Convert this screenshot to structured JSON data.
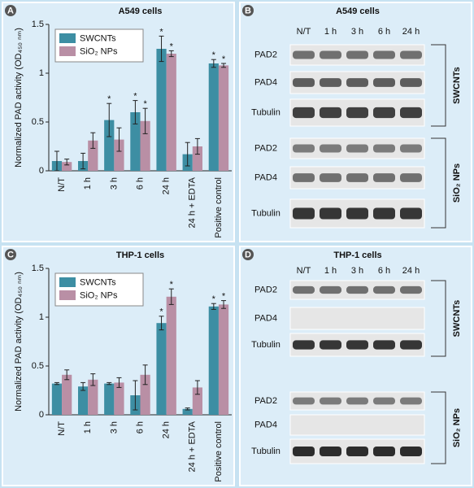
{
  "chart_data": [
    {
      "type": "bar",
      "label": "A",
      "title": "A549 cells",
      "y_label": "Normalized PAD activity (OD₄₅₀ ₙₘ)",
      "categories": [
        "N/T",
        "1 h",
        "3 h",
        "6 h",
        "24 h",
        "24 h + EDTA",
        "Positive control"
      ],
      "series": [
        {
          "name": "SWCNTs",
          "color": "#3d8ea3",
          "values": [
            0.1,
            0.1,
            0.52,
            0.6,
            1.25,
            0.17,
            1.1
          ],
          "errors": [
            0.1,
            0.08,
            0.17,
            0.12,
            0.13,
            0.12,
            0.04
          ],
          "markers": [
            null,
            null,
            "*",
            "*",
            "*",
            null,
            "*"
          ]
        },
        {
          "name": "SiO₂ NPs",
          "color": "#b98fa5",
          "values": [
            0.09,
            0.31,
            0.32,
            0.51,
            1.2,
            0.25,
            1.08
          ],
          "errors": [
            0.03,
            0.08,
            0.12,
            0.13,
            0.03,
            0.08,
            0.02
          ],
          "markers": [
            null,
            null,
            null,
            "*",
            "*",
            null,
            "*"
          ]
        }
      ],
      "ylim": [
        0,
        1.5
      ],
      "yticks": [
        0,
        0.5,
        1,
        1.5
      ],
      "legend": "upper left"
    },
    {
      "type": "bar",
      "label": "C",
      "title": "THP-1 cells",
      "y_label": "Normalized PAD activity (OD₄₅₀ ₙₘ)",
      "categories": [
        "N/T",
        "1 h",
        "3 h",
        "6 h",
        "24 h",
        "24 h + EDTA",
        "Positive control"
      ],
      "series": [
        {
          "name": "SWCNTs",
          "color": "#3d8ea3",
          "values": [
            0.32,
            0.29,
            0.32,
            0.2,
            0.94,
            0.06,
            1.11
          ],
          "errors": [
            0.01,
            0.04,
            0.01,
            0.15,
            0.07,
            0.01,
            0.03
          ],
          "markers": [
            null,
            null,
            null,
            null,
            "*",
            null,
            "*"
          ]
        },
        {
          "name": "SiO₂ NPs",
          "color": "#b98fa5",
          "values": [
            0.41,
            0.36,
            0.33,
            0.41,
            1.21,
            0.28,
            1.13
          ],
          "errors": [
            0.05,
            0.06,
            0.05,
            0.1,
            0.08,
            0.07,
            0.04
          ],
          "markers": [
            null,
            null,
            null,
            null,
            "*",
            null,
            "*"
          ]
        }
      ],
      "ylim": [
        0,
        1.5
      ],
      "yticks": [
        0,
        0.5,
        1,
        1.5
      ],
      "legend": "upper left"
    }
  ],
  "blots": [
    {
      "label": "B",
      "title": "A549 cells",
      "lanes": [
        "N/T",
        "1 h",
        "3 h",
        "6 h",
        "24 h"
      ],
      "groups": [
        {
          "name": "SWCNTs",
          "rows": [
            "PAD2",
            "PAD4",
            "Tubulin"
          ]
        },
        {
          "name": "SiO₂ NPs",
          "rows": [
            "PAD2",
            "PAD4",
            "Tubulin"
          ]
        }
      ]
    },
    {
      "label": "D",
      "title": "THP-1 cells",
      "lanes": [
        "N/T",
        "1 h",
        "3 h",
        "6 h",
        "24 h"
      ],
      "groups": [
        {
          "name": "SWCNTs",
          "rows": [
            "PAD2",
            "PAD4",
            "Tubulin"
          ]
        },
        {
          "name": "SiO₂ NPs",
          "rows": [
            "PAD2",
            "PAD4",
            "Tubulin"
          ]
        }
      ]
    }
  ]
}
